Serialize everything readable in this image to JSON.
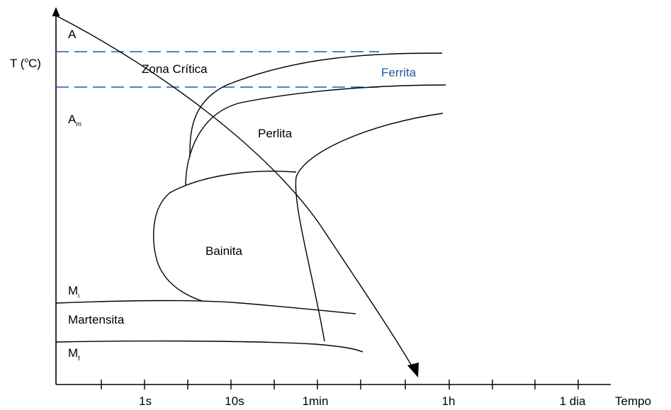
{
  "y_axis": {
    "label": "T (",
    "label_sup": "o",
    "label_end": "C)"
  },
  "x_axis": {
    "label": "Tempo",
    "ticks": [
      "1s",
      "10s",
      "1min",
      "1h",
      "1 dia"
    ]
  },
  "temperature_labels": {
    "a": "A",
    "am_main": "A",
    "am_sub": "m",
    "mi_main": "M",
    "mi_sub": "i",
    "mf_main": "M",
    "mf_sub": "f"
  },
  "regions": {
    "zona_critica": "Zona Crítica",
    "ferrita": "Ferrita",
    "perlita": "Perlita",
    "bainita": "Bainita",
    "martensita": "Martensita"
  },
  "colors": {
    "lines": "#000000",
    "dashed_lines": "#1f5aa0",
    "ferrita_label": "#1f5aa0",
    "background": "#ffffff"
  }
}
